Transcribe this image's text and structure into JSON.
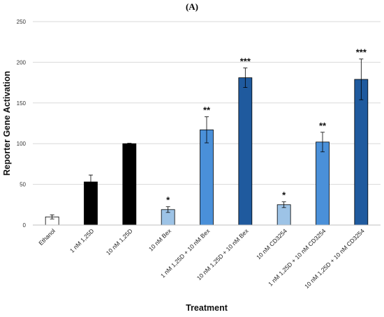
{
  "chart_data": {
    "type": "bar",
    "panel_label": "(A)",
    "title": "",
    "xlabel": "Treatment",
    "ylabel": "Reporter Gene Activation",
    "ylim": [
      0,
      250
    ],
    "yticks": [
      0,
      50,
      100,
      150,
      200,
      250
    ],
    "grid": true,
    "legend": "none",
    "categories": [
      "Ethanol",
      "1 nM 1,25D",
      "10 nM 1,25D",
      "10 nM Bex",
      "1 nM 1,25D + 10 nM Bex",
      "10 nM 1,25D + 10 nM Bex",
      "10 nM CD3254",
      "1 nM 1,25D + 10 nM CD3254",
      "10 nM 1,25D + 10 nM CD3254"
    ],
    "values": [
      10,
      53,
      100,
      19,
      117,
      181,
      25,
      102,
      179
    ],
    "errors": [
      2.5,
      8.5,
      0.5,
      3.5,
      16,
      12,
      3.5,
      12,
      25
    ],
    "significance": [
      "",
      "",
      "",
      "*",
      "**",
      "***",
      "*",
      "**",
      "***"
    ],
    "colors": [
      "#ffffff",
      "#000000",
      "#000000",
      "#9dc3e6",
      "#4a90d9",
      "#1f5a9e",
      "#9dc3e6",
      "#4a90d9",
      "#1f5a9e"
    ],
    "edge_color": "#000000",
    "grid_color": "#d9d9d9"
  }
}
